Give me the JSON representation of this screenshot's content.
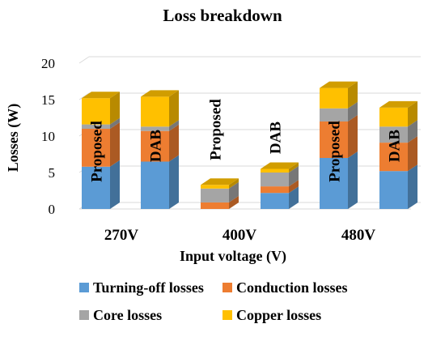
{
  "chart_data": {
    "type": "bar",
    "stacked": true,
    "style": "3d-column",
    "title": "Loss breakdown",
    "xlabel": "Input voltage (V)",
    "ylabel": "Losses (W)",
    "ylim": [
      0,
      20
    ],
    "yticks": [
      0,
      5,
      10,
      15,
      20
    ],
    "grid": true,
    "legend_position": "bottom",
    "groups": [
      "270V",
      "400V",
      "480V"
    ],
    "bars": [
      {
        "group": "270V",
        "label": "Proposed"
      },
      {
        "group": "270V",
        "label": "DAB"
      },
      {
        "group": "400V",
        "label": "Proposed"
      },
      {
        "group": "400V",
        "label": "DAB"
      },
      {
        "group": "480V",
        "label": "Proposed"
      },
      {
        "group": "480V",
        "label": "DAB"
      }
    ],
    "series": [
      {
        "name": "Turning-off losses",
        "color": "#5b9bd5",
        "values": [
          5.8,
          6.5,
          0.0,
          2.2,
          7.0,
          5.2
        ]
      },
      {
        "name": "Conduction losses",
        "color": "#ed7d31",
        "values": [
          5.2,
          4.2,
          0.9,
          0.9,
          5.0,
          3.9
        ]
      },
      {
        "name": "Core losses",
        "color": "#a5a5a5",
        "values": [
          0.6,
          0.6,
          1.9,
          1.9,
          1.8,
          2.2
        ]
      },
      {
        "name": "Copper losses",
        "color": "#ffc000",
        "values": [
          3.6,
          4.1,
          0.5,
          0.5,
          2.8,
          2.6
        ]
      }
    ]
  }
}
